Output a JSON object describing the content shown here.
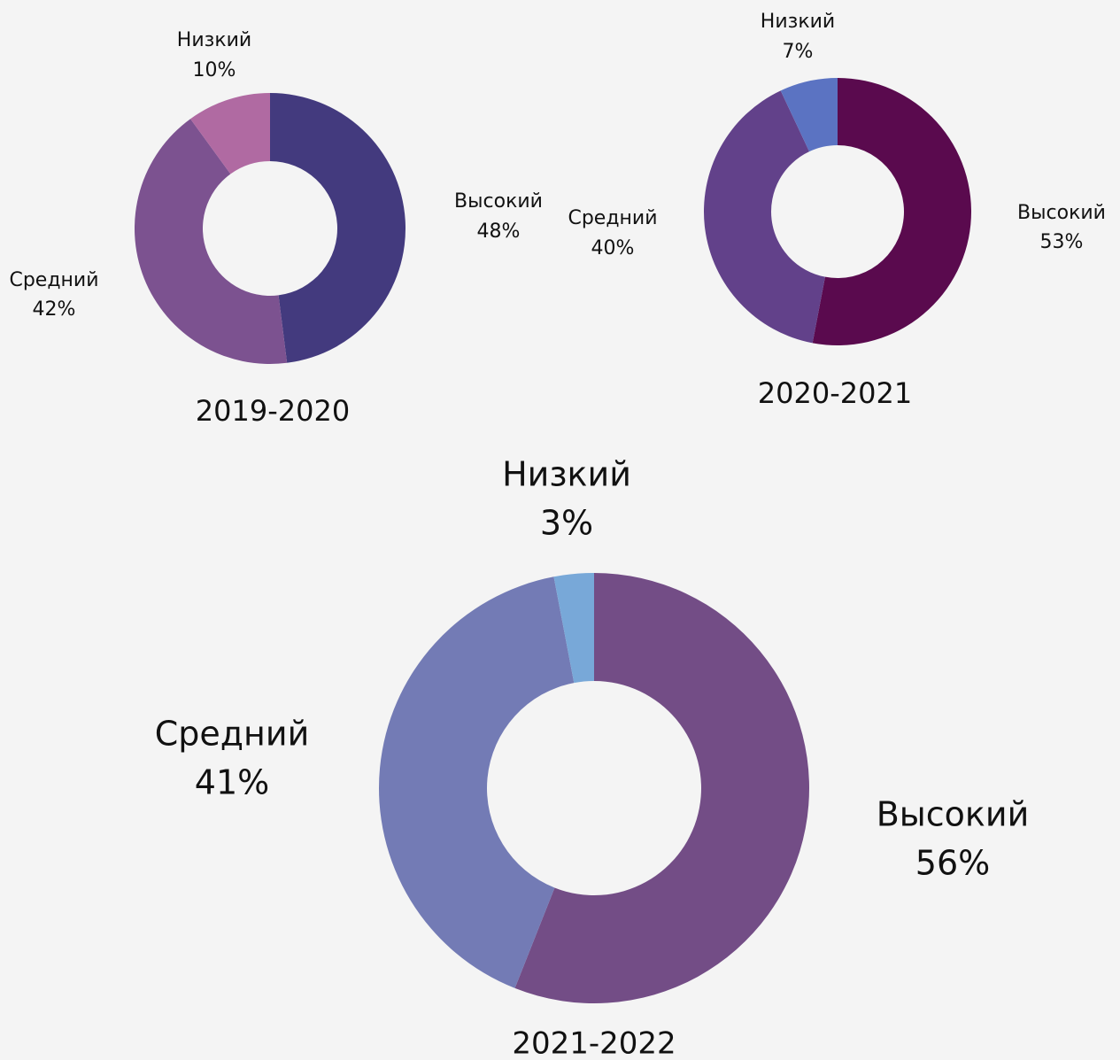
{
  "chart_data": [
    {
      "type": "pie",
      "title": "2019-2020",
      "categories": [
        "Высокий",
        "Средний",
        "Низкий"
      ],
      "values": [
        48,
        42,
        10
      ],
      "value_labels": [
        "48%",
        "42%",
        "10%"
      ],
      "colors": [
        "#433a7e",
        "#7c5290",
        "#b06aa2"
      ]
    },
    {
      "type": "pie",
      "title": "2020-2021",
      "categories": [
        "Высокий",
        "Средний",
        "Низкий"
      ],
      "values": [
        53,
        40,
        7
      ],
      "value_labels": [
        "53%",
        "40%",
        "7%"
      ],
      "colors": [
        "#5a0a4e",
        "#62418a",
        "#5b73c2"
      ]
    },
    {
      "type": "pie",
      "title": "2021-2022",
      "categories": [
        "Высокий",
        "Средний",
        "Низкий"
      ],
      "values": [
        56,
        41,
        3
      ],
      "value_labels": [
        "56%",
        "41%",
        "3%"
      ],
      "colors": [
        "#734d86",
        "#737bb5",
        "#78a8d8"
      ]
    }
  ]
}
